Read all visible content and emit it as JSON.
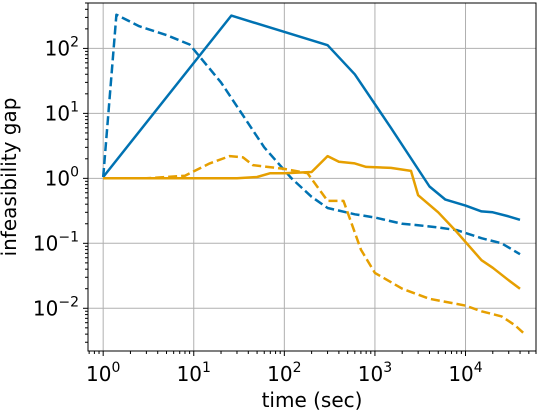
{
  "chart_data": {
    "type": "line",
    "xlabel": "time (sec)",
    "ylabel": "infeasibility gap",
    "xscale": "log",
    "yscale": "log",
    "xlim": [
      0.68,
      60000
    ],
    "ylim": [
      0.0022,
      500
    ],
    "grid": true,
    "x_ticks": [
      {
        "value": 1,
        "base": "10",
        "exp": "0"
      },
      {
        "value": 10,
        "base": "10",
        "exp": "1"
      },
      {
        "value": 100,
        "base": "10",
        "exp": "2"
      },
      {
        "value": 1000,
        "base": "10",
        "exp": "3"
      },
      {
        "value": 10000,
        "base": "10",
        "exp": "4"
      }
    ],
    "y_ticks": [
      {
        "value": 0.01,
        "base": "10",
        "exp": "−2"
      },
      {
        "value": 0.1,
        "base": "10",
        "exp": "−1"
      },
      {
        "value": 1,
        "base": "10",
        "exp": "0"
      },
      {
        "value": 10,
        "base": "10",
        "exp": "1"
      },
      {
        "value": 100,
        "base": "10",
        "exp": "2"
      }
    ],
    "series": [
      {
        "color": "#0072b2",
        "style": "solid",
        "points": [
          [
            1,
            1.05
          ],
          [
            26,
            320
          ],
          [
            300,
            112
          ],
          [
            600,
            40
          ],
          [
            1500,
            6
          ],
          [
            4000,
            0.75
          ],
          [
            6000,
            0.47
          ],
          [
            10000,
            0.38
          ],
          [
            15000,
            0.31
          ],
          [
            20000,
            0.3
          ],
          [
            30000,
            0.26
          ],
          [
            40000,
            0.23
          ]
        ]
      },
      {
        "color": "#0072b2",
        "style": "dashed",
        "points": [
          [
            1,
            1.05
          ],
          [
            1.4,
            330
          ],
          [
            2.5,
            220
          ],
          [
            5,
            160
          ],
          [
            9,
            115
          ],
          [
            20,
            30
          ],
          [
            60,
            3
          ],
          [
            120,
            1
          ],
          [
            200,
            0.52
          ],
          [
            300,
            0.35
          ],
          [
            600,
            0.28
          ],
          [
            1000,
            0.25
          ],
          [
            2000,
            0.2
          ],
          [
            3000,
            0.19
          ],
          [
            5000,
            0.175
          ],
          [
            8000,
            0.16
          ],
          [
            15000,
            0.12
          ],
          [
            25000,
            0.1
          ],
          [
            40000,
            0.068
          ]
        ]
      },
      {
        "color": "#e69f00",
        "style": "solid",
        "points": [
          [
            1,
            1.0
          ],
          [
            30,
            1.0
          ],
          [
            50,
            1.05
          ],
          [
            70,
            1.2
          ],
          [
            100,
            1.2
          ],
          [
            200,
            1.25
          ],
          [
            300,
            2.2
          ],
          [
            400,
            1.8
          ],
          [
            600,
            1.7
          ],
          [
            800,
            1.5
          ],
          [
            1500,
            1.45
          ],
          [
            2500,
            1.3
          ],
          [
            3000,
            0.55
          ],
          [
            5000,
            0.3
          ],
          [
            8000,
            0.15
          ],
          [
            15000,
            0.055
          ],
          [
            20000,
            0.042
          ],
          [
            30000,
            0.027
          ],
          [
            40000,
            0.02
          ]
        ]
      },
      {
        "color": "#e69f00",
        "style": "dashed",
        "points": [
          [
            1,
            1.0
          ],
          [
            3,
            1.0
          ],
          [
            8,
            1.1
          ],
          [
            15,
            1.7
          ],
          [
            25,
            2.2
          ],
          [
            35,
            2.1
          ],
          [
            45,
            1.6
          ],
          [
            100,
            1.4
          ],
          [
            180,
            1.2
          ],
          [
            300,
            0.45
          ],
          [
            450,
            0.45
          ],
          [
            700,
            0.08
          ],
          [
            1000,
            0.035
          ],
          [
            2000,
            0.02
          ],
          [
            4000,
            0.014
          ],
          [
            10000,
            0.011
          ],
          [
            15000,
            0.009
          ],
          [
            25000,
            0.0075
          ],
          [
            35000,
            0.0055
          ],
          [
            45000,
            0.004
          ]
        ]
      }
    ]
  }
}
